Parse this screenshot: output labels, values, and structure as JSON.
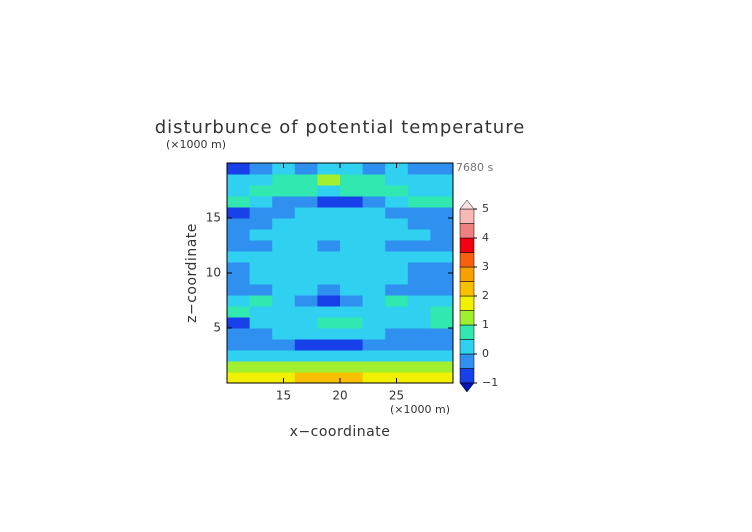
{
  "chart_data": {
    "type": "contour",
    "title": "disturbunce of potential temperature",
    "y_unit_label": "(×1000 m)",
    "x_unit_label": "(×1000 m)",
    "time_label": "7680 s",
    "x_label": "x−coordinate",
    "y_label": "z−coordinate",
    "x": [
      11,
      13,
      15,
      17,
      19,
      21,
      23,
      25,
      27,
      29
    ],
    "y": [
      0.5,
      1.5,
      2.5,
      3.5,
      4.5,
      5.5,
      6.5,
      7.5,
      8.5,
      9.5,
      10.5,
      11.5,
      12.5,
      13.5,
      14.5,
      15.5,
      16.5,
      17.5,
      18.5,
      19.5
    ],
    "z": [
      [
        1.8,
        1.8,
        1.9,
        2.0,
        2.0,
        2.0,
        1.9,
        1.8,
        1.8,
        1.8
      ],
      [
        1.1,
        1.1,
        1.2,
        1.3,
        1.3,
        1.3,
        1.2,
        1.1,
        1.1,
        1.1
      ],
      [
        0.2,
        0.2,
        0.3,
        0.3,
        0.3,
        0.3,
        0.3,
        0.2,
        0.2,
        0.2
      ],
      [
        -0.3,
        -0.3,
        -0.4,
        -0.6,
        -0.8,
        -0.7,
        -0.5,
        -0.3,
        -0.3,
        -0.3
      ],
      [
        -0.2,
        -0.1,
        0,
        0.1,
        0.2,
        0.1,
        0,
        -0.1,
        -0.1,
        -0.1
      ],
      [
        -0.6,
        0,
        0.2,
        0.4,
        0.8,
        0.6,
        0.2,
        0,
        0,
        0.7
      ],
      [
        0.6,
        0.2,
        0,
        0,
        0.1,
        0,
        0,
        0.2,
        0.3,
        0.6
      ],
      [
        0.2,
        0.6,
        0.3,
        -0.2,
        -0.6,
        -0.3,
        0.2,
        0.7,
        0.4,
        0.2
      ],
      [
        -0.2,
        -0.3,
        0,
        0,
        -0.2,
        0,
        0,
        -0.2,
        -0.3,
        -0.2
      ],
      [
        -0.1,
        0,
        0.2,
        0.3,
        0.3,
        0.3,
        0.2,
        0,
        -0.1,
        -0.1
      ],
      [
        -0.1,
        0,
        0.2,
        0.3,
        0.3,
        0.3,
        0.2,
        0,
        -0.1,
        -0.1
      ],
      [
        0,
        0,
        0.1,
        0.1,
        0.1,
        0.1,
        0.1,
        0,
        0,
        0
      ],
      [
        -0.1,
        -0.1,
        0,
        0,
        -0.4,
        0,
        0,
        -0.1,
        -0.1,
        -0.1
      ],
      [
        -0.1,
        0,
        0,
        0,
        0,
        0,
        0,
        0,
        0,
        -0.1
      ],
      [
        -0.2,
        -0.1,
        0,
        0,
        0,
        0,
        0,
        0,
        -0.1,
        -0.2
      ],
      [
        -0.6,
        -0.3,
        -0.1,
        0.1,
        0.1,
        0.1,
        0,
        -0.1,
        -0.3,
        -0.5
      ],
      [
        0.5,
        0.2,
        -0.2,
        -0.5,
        -0.7,
        -0.6,
        -0.3,
        0.2,
        0.5,
        0.6
      ],
      [
        0.3,
        0.6,
        0.8,
        0.6,
        0.4,
        0.6,
        0.8,
        0.6,
        0.3,
        0.2
      ],
      [
        0.1,
        0.3,
        0.6,
        0.9,
        1.1,
        0.9,
        0.6,
        0.3,
        0.1,
        0.0
      ],
      [
        -0.6,
        -0.2,
        0,
        -0.3,
        0,
        0,
        -0.3,
        0,
        -0.2,
        -0.4
      ]
    ],
    "xlim": [
      10,
      30
    ],
    "ylim": [
      0,
      20
    ],
    "xticks": [
      15,
      20,
      25
    ],
    "yticks": [
      5,
      10,
      15
    ],
    "levels": [
      -1,
      -0.5,
      0,
      0.5,
      1,
      1.5,
      2,
      2.5,
      3,
      3.5,
      4,
      4.5,
      5
    ],
    "colors": [
      "#1840e8",
      "#3090f0",
      "#30d0f0",
      "#30e8b0",
      "#a0f030",
      "#f0f000",
      "#f8c000",
      "#f8a000",
      "#f86010",
      "#f00010",
      "#f08080",
      "#f8b8b8"
    ],
    "extend_colors": [
      "#0010b0",
      "#f8e0e0"
    ],
    "colorbar_ticks": [
      {
        "value": -1,
        "label": "−1"
      },
      0,
      1,
      2,
      3,
      4,
      5
    ]
  }
}
